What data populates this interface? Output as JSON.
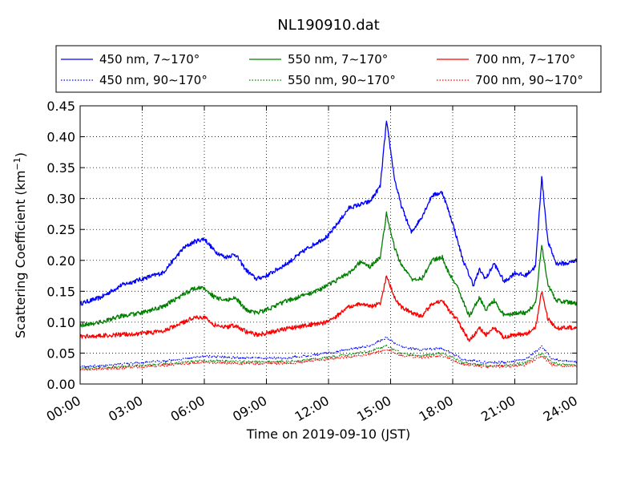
{
  "chart_data": {
    "type": "line",
    "title": "NL190910.dat",
    "xlabel": "Time on 2019-09-10 (JST)",
    "ylabel": "Scattering Coefficient (km",
    "ylabel_sup": "−1",
    "ylabel_end": ")",
    "xlim": [
      0,
      24
    ],
    "ylim": [
      0,
      0.45
    ],
    "x_ticks": [
      0,
      3,
      6,
      9,
      12,
      15,
      18,
      21,
      24
    ],
    "x_tick_labels": [
      "00:00",
      "03:00",
      "06:00",
      "09:00",
      "12:00",
      "15:00",
      "18:00",
      "21:00",
      "24:00"
    ],
    "y_ticks": [
      0,
      0.05,
      0.1,
      0.15,
      0.2,
      0.25,
      0.3,
      0.35,
      0.4,
      0.45
    ],
    "y_tick_labels": [
      "0.00",
      "0.05",
      "0.10",
      "0.15",
      "0.20",
      "0.25",
      "0.30",
      "0.35",
      "0.40",
      "0.45"
    ],
    "grid": true,
    "legend_position": "top",
    "series": [
      {
        "name": "450 nm, 7∼170°",
        "color": "#0000ff",
        "style": "solid",
        "x": [
          0,
          1,
          2,
          3,
          4,
          5,
          5.5,
          6,
          6.5,
          7,
          7.5,
          8,
          8.5,
          9,
          9.5,
          10,
          11,
          12,
          13,
          14,
          14.5,
          14.8,
          15.2,
          15.5,
          16,
          16.5,
          17,
          17.5,
          17.8,
          18,
          18.5,
          19,
          19.3,
          19.6,
          20,
          20.5,
          21,
          21.5,
          22,
          22.3,
          22.6,
          23,
          23.5,
          24
        ],
        "values": [
          0.13,
          0.14,
          0.16,
          0.17,
          0.18,
          0.22,
          0.23,
          0.235,
          0.215,
          0.205,
          0.21,
          0.185,
          0.17,
          0.175,
          0.185,
          0.195,
          0.22,
          0.24,
          0.285,
          0.295,
          0.32,
          0.425,
          0.33,
          0.29,
          0.245,
          0.27,
          0.305,
          0.31,
          0.28,
          0.26,
          0.2,
          0.16,
          0.185,
          0.17,
          0.195,
          0.165,
          0.18,
          0.175,
          0.19,
          0.335,
          0.23,
          0.195,
          0.195,
          0.2
        ]
      },
      {
        "name": "450 nm, 90∼170°",
        "color": "#0000ff",
        "style": "dotted",
        "x": [
          0,
          2,
          4,
          6,
          8,
          10,
          12,
          13,
          14,
          14.8,
          15.5,
          16.5,
          17.5,
          18.5,
          19.5,
          20.5,
          21.5,
          22.3,
          22.8,
          24
        ],
        "values": [
          0.028,
          0.032,
          0.037,
          0.045,
          0.042,
          0.042,
          0.05,
          0.056,
          0.062,
          0.075,
          0.06,
          0.055,
          0.058,
          0.04,
          0.035,
          0.035,
          0.04,
          0.06,
          0.04,
          0.035
        ]
      },
      {
        "name": "550 nm, 7∼170°",
        "color": "#008000",
        "style": "solid",
        "x": [
          0,
          1,
          2,
          3,
          4,
          5,
          5.5,
          6,
          6.5,
          7,
          7.5,
          8,
          8.5,
          9,
          10,
          11,
          12,
          13,
          13.6,
          14,
          14.5,
          14.8,
          15.2,
          15.5,
          16,
          16.5,
          17,
          17.5,
          17.8,
          18.2,
          18.8,
          19.3,
          19.6,
          20,
          20.5,
          21,
          21.5,
          22,
          22.3,
          22.6,
          23,
          24
        ],
        "values": [
          0.095,
          0.1,
          0.11,
          0.115,
          0.125,
          0.145,
          0.155,
          0.155,
          0.14,
          0.135,
          0.14,
          0.12,
          0.115,
          0.12,
          0.135,
          0.145,
          0.16,
          0.18,
          0.2,
          0.19,
          0.205,
          0.275,
          0.22,
          0.195,
          0.17,
          0.17,
          0.2,
          0.205,
          0.18,
          0.16,
          0.11,
          0.14,
          0.12,
          0.135,
          0.11,
          0.115,
          0.115,
          0.13,
          0.225,
          0.16,
          0.135,
          0.13
        ]
      },
      {
        "name": "550 nm, 90∼170°",
        "color": "#008000",
        "style": "dotted",
        "x": [
          0,
          2,
          4,
          6,
          8,
          10,
          12,
          13,
          14,
          14.8,
          15.5,
          16.5,
          17.5,
          18.5,
          19.5,
          20.5,
          21.5,
          22.3,
          22.8,
          24
        ],
        "values": [
          0.025,
          0.028,
          0.032,
          0.038,
          0.036,
          0.036,
          0.043,
          0.048,
          0.053,
          0.062,
          0.05,
          0.046,
          0.05,
          0.035,
          0.03,
          0.03,
          0.034,
          0.05,
          0.034,
          0.03
        ]
      },
      {
        "name": "700 nm, 7∼170°",
        "color": "#ff0000",
        "style": "solid",
        "x": [
          0,
          1,
          2,
          3,
          4,
          5,
          5.5,
          6,
          6.5,
          7,
          7.5,
          8,
          8.5,
          9,
          10,
          11,
          12,
          13,
          13.6,
          14,
          14.5,
          14.8,
          15.2,
          15.5,
          16,
          16.5,
          17,
          17.5,
          17.8,
          18.2,
          18.8,
          19.3,
          19.6,
          20,
          20.5,
          21,
          21.5,
          22,
          22.3,
          22.6,
          23,
          24
        ],
        "values": [
          0.077,
          0.078,
          0.08,
          0.082,
          0.085,
          0.1,
          0.108,
          0.108,
          0.095,
          0.092,
          0.095,
          0.085,
          0.08,
          0.082,
          0.09,
          0.095,
          0.1,
          0.125,
          0.13,
          0.125,
          0.13,
          0.175,
          0.14,
          0.125,
          0.115,
          0.11,
          0.13,
          0.135,
          0.12,
          0.105,
          0.07,
          0.09,
          0.08,
          0.09,
          0.075,
          0.08,
          0.08,
          0.09,
          0.15,
          0.105,
          0.09,
          0.092
        ]
      },
      {
        "name": "700 nm, 90∼170°",
        "color": "#ff0000",
        "style": "dotted",
        "x": [
          0,
          2,
          4,
          6,
          8,
          10,
          12,
          13,
          14,
          14.8,
          15.5,
          16.5,
          17.5,
          18.5,
          19.5,
          20.5,
          21.5,
          22.3,
          22.8,
          24
        ],
        "values": [
          0.023,
          0.026,
          0.03,
          0.035,
          0.033,
          0.033,
          0.04,
          0.044,
          0.048,
          0.056,
          0.046,
          0.043,
          0.046,
          0.032,
          0.028,
          0.028,
          0.031,
          0.045,
          0.031,
          0.028
        ]
      }
    ]
  }
}
